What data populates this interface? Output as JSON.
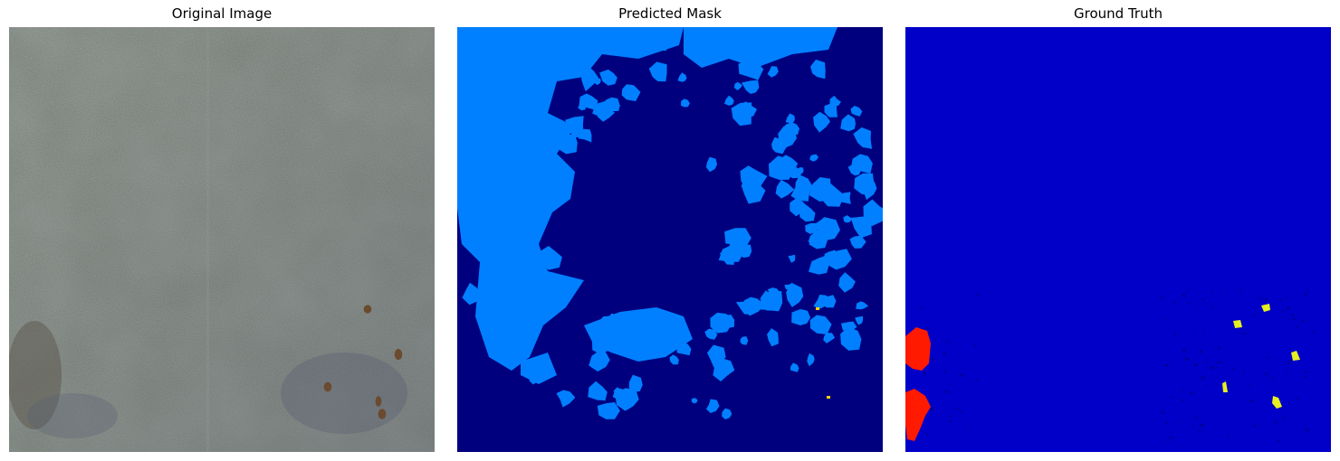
{
  "figure": {
    "panels": [
      {
        "title": "Original Image"
      },
      {
        "title": "Predicted Mask"
      },
      {
        "title": "Ground Truth"
      }
    ]
  },
  "colors": {
    "original_base": "#6b726b",
    "original_speckle_light": "#8a908a",
    "original_speckle_dark": "#4f564f",
    "original_rust": "#6b4a2e",
    "original_blue_stain": "#5a6070",
    "pred_background": "#00007f",
    "pred_class_1": "#0080ff",
    "pred_class_rare": "#ffd000",
    "gt_background": "#0000c8",
    "gt_red": "#ff1a00",
    "gt_yellow": "#e6f020",
    "gt_dark": "#00007f"
  }
}
